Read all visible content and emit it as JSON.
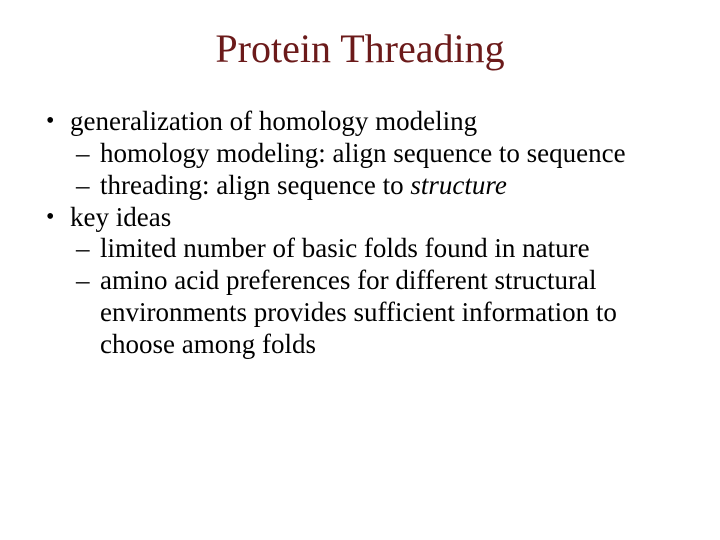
{
  "title_color": "#6b1a1a",
  "body_color": "#000000",
  "title": "Protein Threading",
  "bullets": {
    "b1": "generalization of homology modeling",
    "b1_s1": "homology modeling: align sequence to sequence",
    "b1_s2_a": "threading: align sequence to ",
    "b1_s2_b": "structure",
    "b2": "key ideas",
    "b2_s1": "limited number of basic folds found in nature",
    "b2_s2": "amino acid preferences for different structural environments provides sufficient information to choose among folds"
  }
}
